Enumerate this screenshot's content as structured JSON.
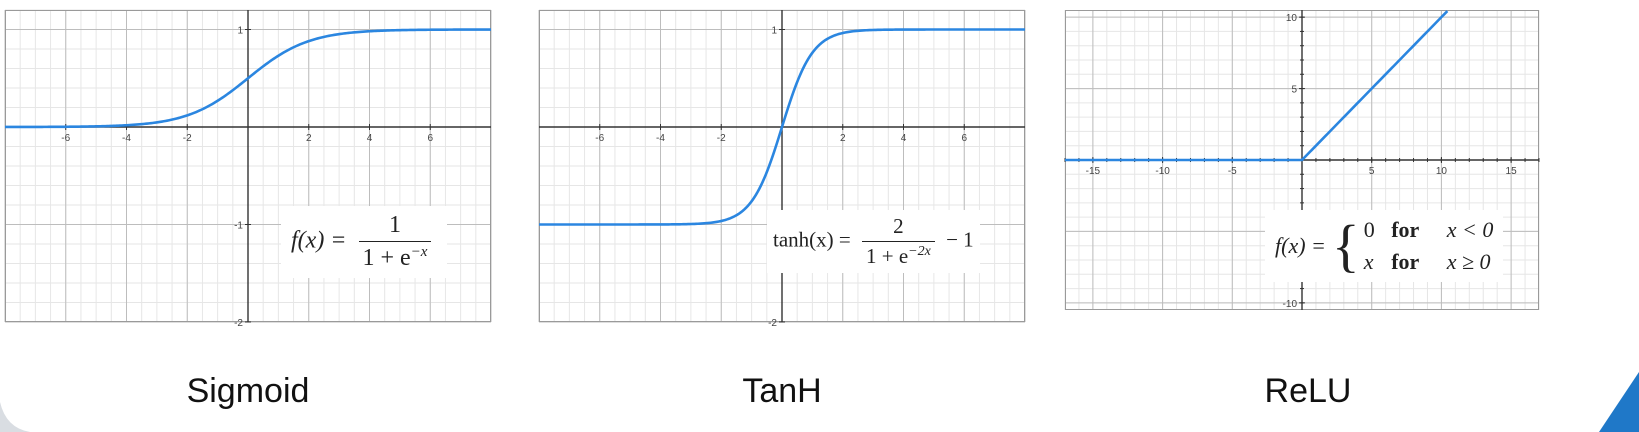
{
  "chart_data": [
    {
      "type": "line",
      "title": "Sigmoid",
      "function": "sigmoid",
      "xlim": [
        -8,
        8
      ],
      "ylim": [
        -2,
        1.2
      ],
      "x_ticks": [
        -6,
        -4,
        -2,
        2,
        4,
        6
      ],
      "x_tick_labels": [
        "-6",
        "-4",
        "-2",
        "2",
        "4",
        "6"
      ],
      "y_ticks": [
        1,
        -1,
        -2
      ],
      "y_tick_labels": [
        "1",
        "-1",
        "-2"
      ],
      "grid": true,
      "series": [
        {
          "color": "#2b86e0",
          "x": [
            -8,
            -6,
            -4,
            -3,
            -2,
            -1,
            0,
            1,
            2,
            3,
            4,
            6,
            8
          ],
          "y": [
            0.0003,
            0.0025,
            0.018,
            0.047,
            0.119,
            0.269,
            0.5,
            0.731,
            0.881,
            0.953,
            0.982,
            0.998,
            1.0
          ]
        }
      ],
      "formula": {
        "lhs": "f(x) =",
        "num": "1",
        "den_base": "1 + e",
        "den_exp": "−x",
        "tail": ""
      }
    },
    {
      "type": "line",
      "title": "TanH",
      "function": "tanh",
      "xlim": [
        -8,
        8
      ],
      "ylim": [
        -2,
        1.2
      ],
      "x_ticks": [
        -6,
        -4,
        -2,
        2,
        4,
        6
      ],
      "x_tick_labels": [
        "-6",
        "-4",
        "-2",
        "2",
        "4",
        "6"
      ],
      "y_ticks": [
        1,
        -1,
        -2
      ],
      "y_tick_labels": [
        "1",
        "-1",
        "-2"
      ],
      "grid": true,
      "series": [
        {
          "color": "#2b86e0",
          "x": [
            -8,
            -4,
            -3,
            -2,
            -1,
            -0.5,
            0,
            0.5,
            1,
            2,
            3,
            4,
            8
          ],
          "y": [
            -1.0,
            -0.999,
            -0.995,
            -0.964,
            -0.762,
            -0.462,
            0,
            0.462,
            0.762,
            0.964,
            0.995,
            0.999,
            1.0
          ]
        }
      ],
      "formula": {
        "lhs": "tanh(x) =",
        "num": "2",
        "den_base": "1 + e",
        "den_exp": "−2x",
        "tail": "− 1"
      }
    },
    {
      "type": "line",
      "title": "ReLU",
      "function": "relu",
      "xlim": [
        -17,
        17
      ],
      "ylim": [
        -10.5,
        10.5
      ],
      "x_ticks": [
        -15,
        -10,
        -5,
        5,
        10,
        15
      ],
      "x_tick_labels": [
        "-15",
        "-10",
        "-5",
        "5",
        "10",
        "15"
      ],
      "y_ticks": [
        10,
        5,
        -10
      ],
      "y_tick_labels": [
        "10",
        "5",
        "-10"
      ],
      "grid": true,
      "series": [
        {
          "color": "#2b86e0",
          "x": [
            -17,
            0,
            10.5
          ],
          "y": [
            0,
            0,
            10.5
          ]
        }
      ],
      "formula": {
        "lhs": "f(x) =",
        "case1_val": "0",
        "case1_kw": "for",
        "case1_cond": "x < 0",
        "case2_val": "x",
        "case2_kw": "for",
        "case2_cond": "x ≥ 0"
      }
    }
  ],
  "captions": [
    "Sigmoid",
    "TanH",
    "ReLU"
  ]
}
